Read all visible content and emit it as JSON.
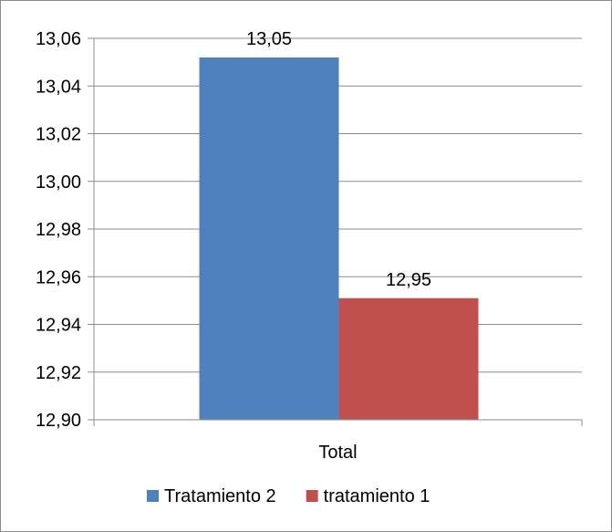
{
  "chart_data": {
    "type": "bar",
    "categories": [
      "Total"
    ],
    "series": [
      {
        "name": "Tratamiento 2",
        "values": [
          13.052
        ],
        "label": "13,05",
        "color": "#4f81bd"
      },
      {
        "name": "tratamiento 1",
        "values": [
          12.951
        ],
        "label": "12,95",
        "color": "#c0504d"
      }
    ],
    "ylim": [
      12.9,
      13.06
    ],
    "yticks": [
      "12,90",
      "12,92",
      "12,94",
      "12,96",
      "12,98",
      "13,00",
      "13,02",
      "13,04",
      "13,06"
    ],
    "title": "",
    "xlabel": "",
    "ylabel": "",
    "grid": true,
    "legend_position": "bottom"
  }
}
